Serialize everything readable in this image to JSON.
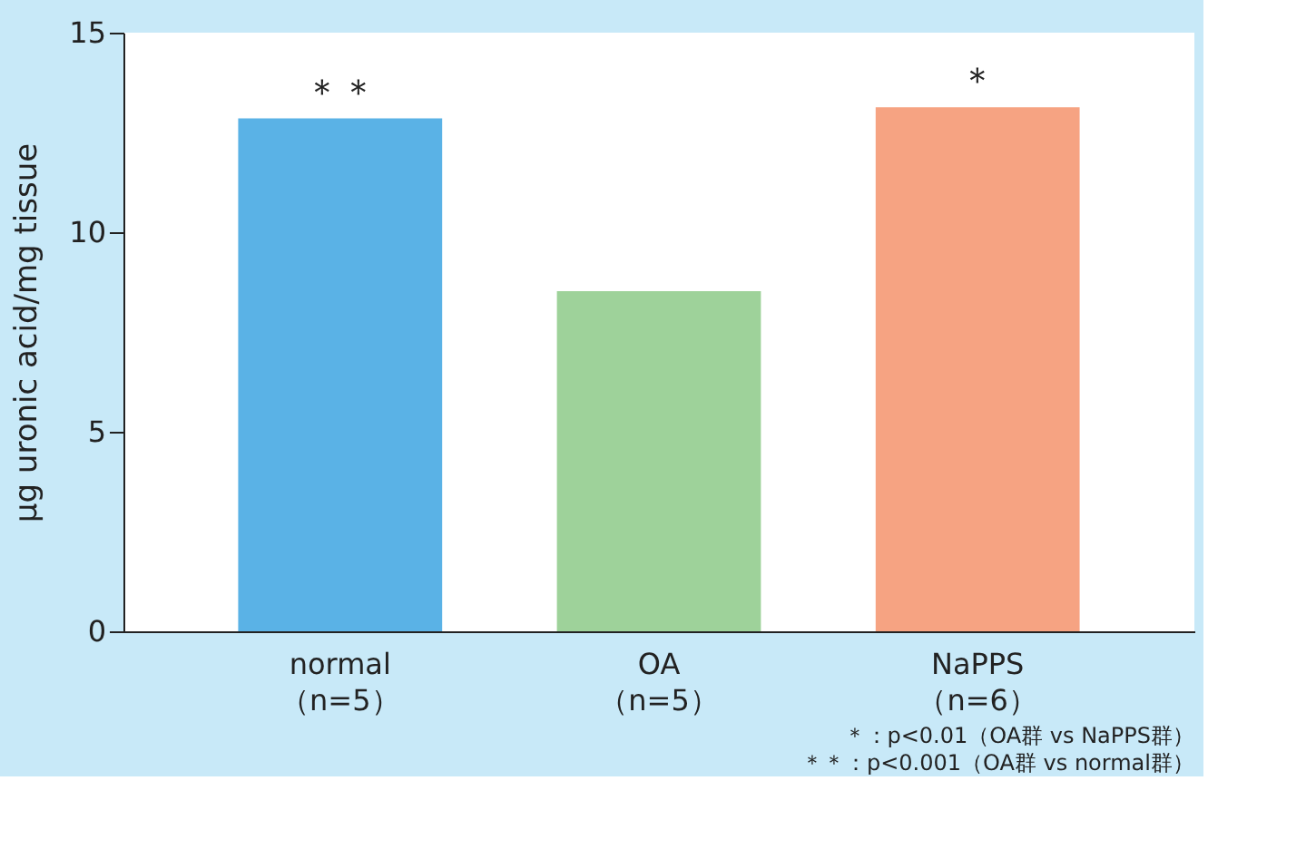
{
  "chart_data": {
    "type": "bar",
    "ylabel": "μg uronic acid/mg tissue",
    "categories": [
      "normal\n（n=5）",
      "OA\n（n=5）",
      "NaPPS\n（n=6）"
    ],
    "values": [
      12.85,
      8.52,
      13.13
    ],
    "colors": [
      "#5ab2e6",
      "#9ed29a",
      "#f6a382"
    ],
    "ylim": [
      0,
      15
    ],
    "yticks": [
      0,
      5,
      10,
      15
    ],
    "grid": false,
    "annotations": [
      {
        "text": "＊＊",
        "x": "normal\n（n=5）",
        "y": 12.85
      },
      {
        "text": "＊",
        "x": "NaPPS\n（n=6）",
        "y": 13.13
      },
      "＊：p<0.01（OA群 vs NaPPS群）",
      "＊＊：p<0.001（OA群 vs normal群）"
    ]
  }
}
